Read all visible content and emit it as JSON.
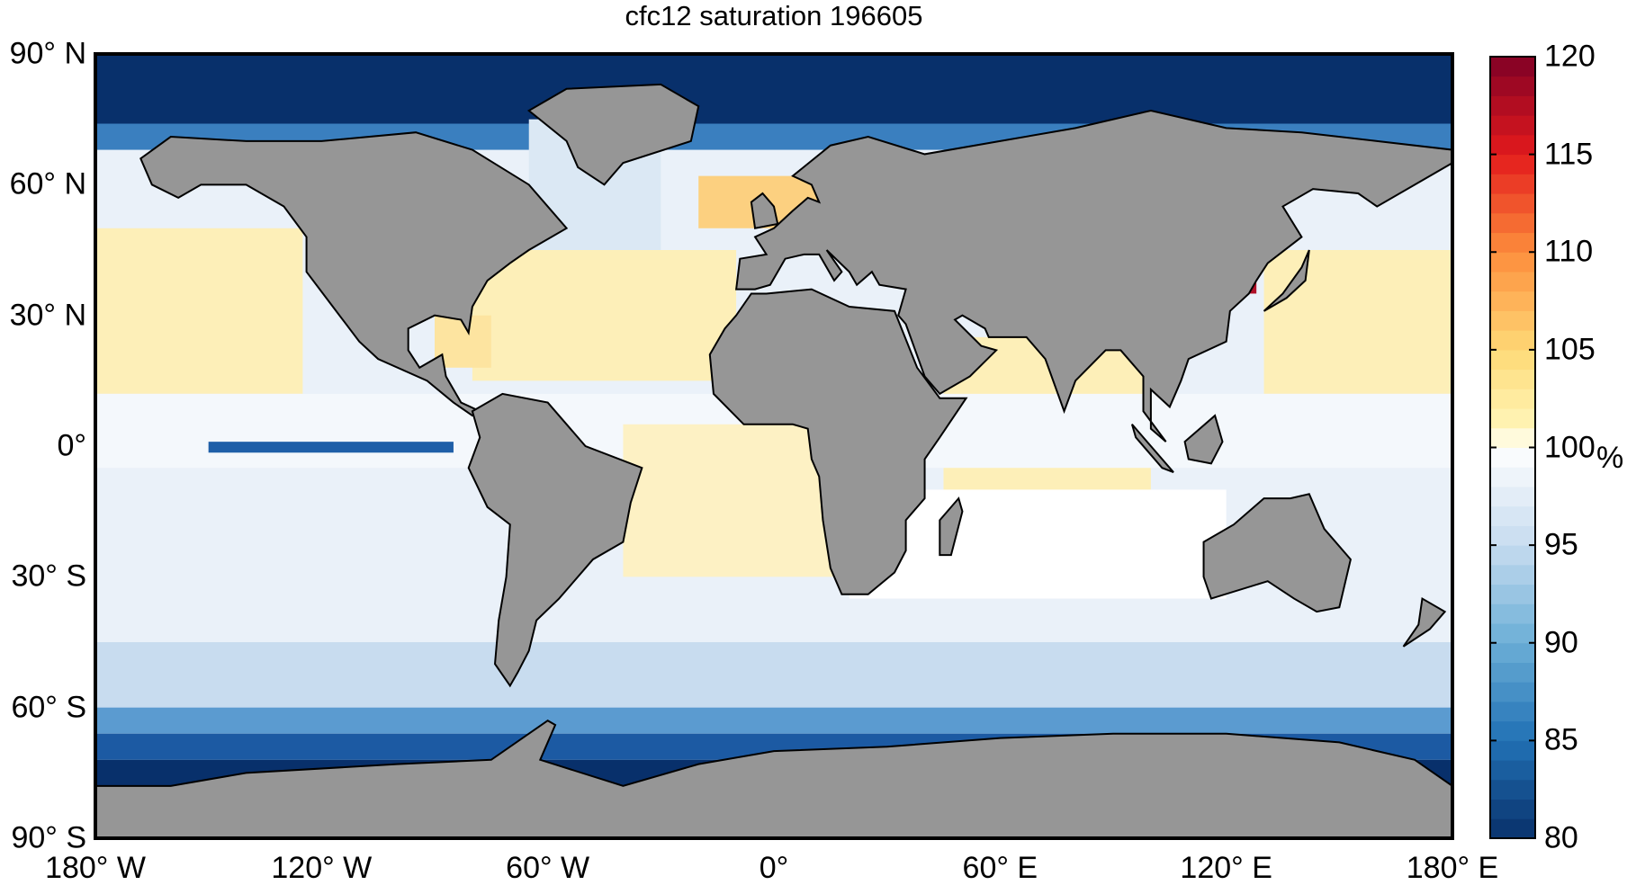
{
  "title": "cfc12 saturation 196605",
  "y_axis_labels": [
    "90° N",
    "60° N",
    "30° N",
    "0°",
    "30° S",
    "60° S",
    "90° S"
  ],
  "x_axis_labels": [
    "180° W",
    "120° W",
    "60° W",
    "0°",
    "60° E",
    "120° E",
    "180° E"
  ],
  "colorbar": {
    "unit": "%",
    "ticks": [
      "80",
      "85",
      "90",
      "95",
      "100",
      "105",
      "110",
      "115",
      "120"
    ],
    "min": 80,
    "max": 120,
    "colors": {
      "80": "#08306b",
      "85": "#2171b5",
      "90": "#6baed6",
      "95": "#c6dbef",
      "100": "#ffffff",
      "101": "#fff5b8",
      "105": "#fed976",
      "110": "#fd8d3c",
      "115": "#e31a1c",
      "120": "#800026"
    }
  },
  "land_color": "#969696"
}
